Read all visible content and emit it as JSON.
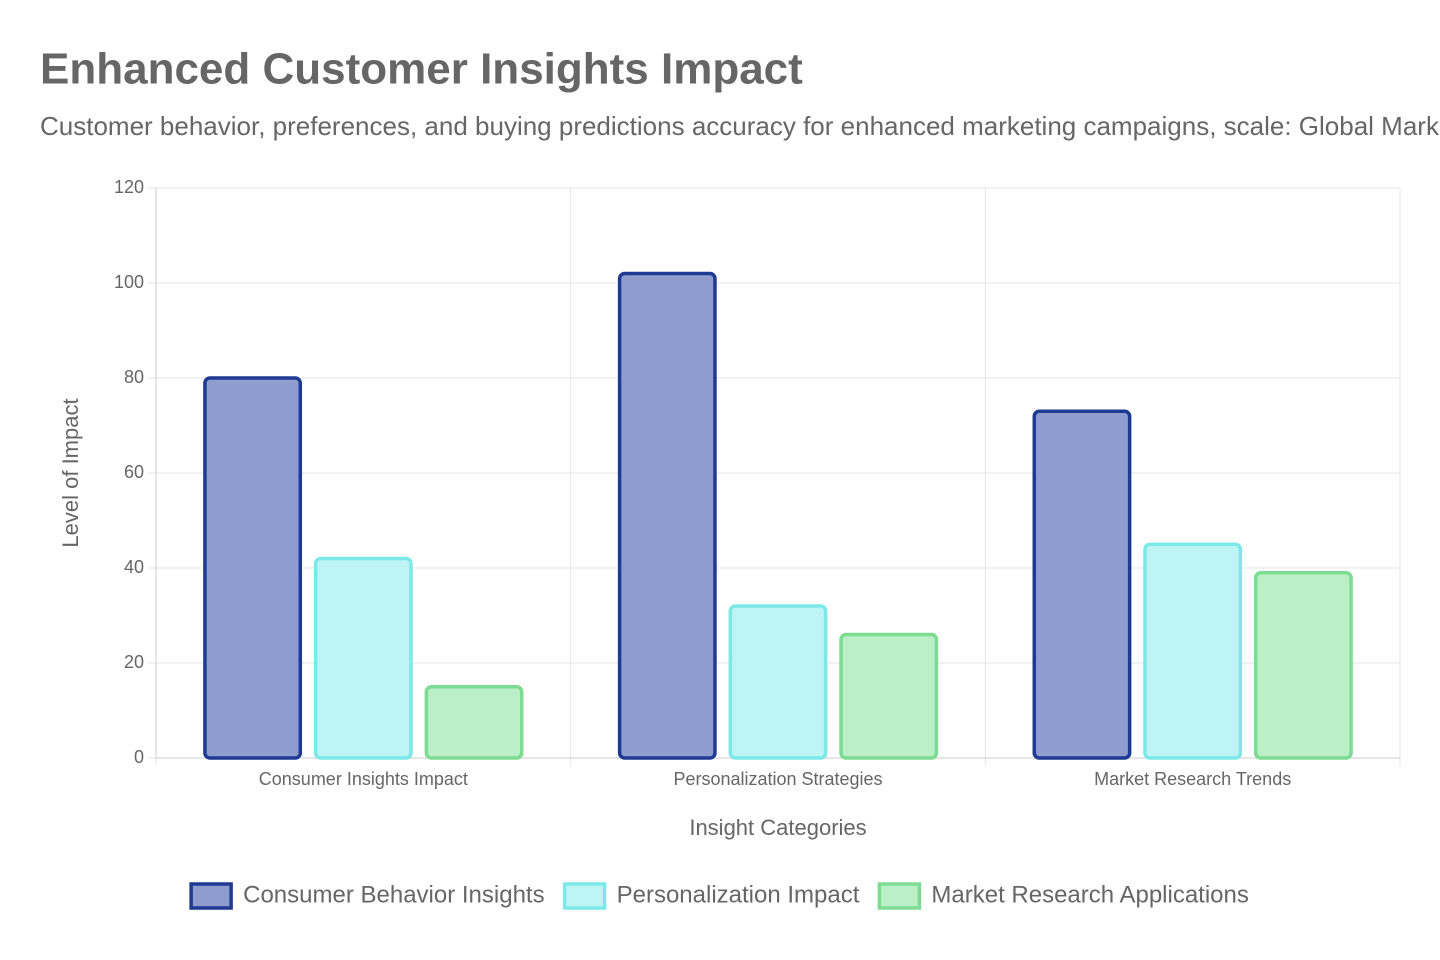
{
  "chart_data": {
    "type": "bar",
    "title": "Enhanced Customer Insights Impact",
    "subtitle": "Customer behavior, preferences, and buying predictions accuracy for enhanced marketing campaigns, scale: Global Market",
    "x_label": "Insight Categories",
    "y_label": "Level of Impact",
    "categories": [
      "Consumer Insights Impact",
      "Personalization Strategies",
      "Market Research Trends"
    ],
    "series": [
      {
        "name": "Consumer Behavior Insights",
        "color": "#8f9cce",
        "border_color": "#1f3a93",
        "values": [
          80,
          102,
          73
        ]
      },
      {
        "name": "Personalization Impact",
        "color": "#bff4f4",
        "border_color": "#7de8e8",
        "values": [
          42,
          32,
          45
        ]
      },
      {
        "name": "Market Research Applications",
        "color": "#baefc7",
        "border_color": "#7ddc92",
        "values": [
          15,
          26,
          39
        ]
      }
    ],
    "ylim": [
      0,
      120
    ],
    "yticks": [
      0,
      20,
      40,
      60,
      80,
      100,
      120
    ],
    "grid": true,
    "legend": "bottom"
  }
}
